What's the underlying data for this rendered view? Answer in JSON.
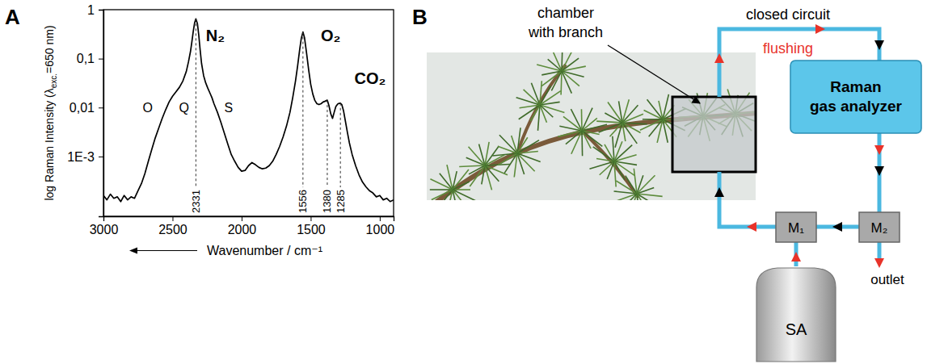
{
  "panels": [
    "A",
    "B"
  ],
  "chart_data": {
    "type": "line",
    "xlabel": "Wavenumber / cm⁻¹",
    "ylabel": [
      "log Raman Intensity (λ",
      "exc.",
      "=650 nm)"
    ],
    "log": "y",
    "grid": false,
    "color": "#000000",
    "xlim": [
      3000,
      900
    ],
    "xticks": [
      3000,
      2500,
      2000,
      1500,
      1000
    ],
    "ylim": [
      6e-05,
      1
    ],
    "yticks": [
      {
        "value": 0.001,
        "label": "1E-3"
      },
      {
        "value": 0.01,
        "label": "0,01"
      },
      {
        "value": 0.1,
        "label": "0,1"
      },
      1
    ],
    "x": [
      3000,
      2975,
      2950,
      2925,
      2900,
      2875,
      2850,
      2825,
      2800,
      2775,
      2750,
      2725,
      2700,
      2675,
      2650,
      2625,
      2600,
      2575,
      2550,
      2525,
      2500,
      2475,
      2450,
      2425,
      2400,
      2385,
      2370,
      2360,
      2350,
      2340,
      2331,
      2320,
      2310,
      2300,
      2290,
      2275,
      2260,
      2245,
      2230,
      2215,
      2200,
      2175,
      2150,
      2125,
      2100,
      2075,
      2050,
      2025,
      2000,
      1975,
      1950,
      1925,
      1900,
      1875,
      1850,
      1825,
      1800,
      1775,
      1750,
      1725,
      1700,
      1675,
      1650,
      1630,
      1610,
      1595,
      1580,
      1568,
      1556,
      1545,
      1530,
      1515,
      1500,
      1485,
      1470,
      1455,
      1440,
      1425,
      1410,
      1395,
      1380,
      1368,
      1355,
      1342,
      1330,
      1318,
      1305,
      1295,
      1285,
      1275,
      1262,
      1250,
      1235,
      1220,
      1200,
      1175,
      1150,
      1125,
      1100,
      1075,
      1050,
      1025,
      1000,
      975,
      950,
      925,
      900
    ],
    "values": [
      0.00016,
      0.00013,
      0.00017,
      0.00014,
      0.00015,
      0.00012,
      0.00016,
      0.00013,
      0.00015,
      0.00014,
      0.0002,
      0.00028,
      0.00045,
      0.0008,
      0.0014,
      0.0024,
      0.0038,
      0.006,
      0.009,
      0.013,
      0.017,
      0.021,
      0.026,
      0.035,
      0.055,
      0.085,
      0.14,
      0.22,
      0.36,
      0.54,
      0.65,
      0.52,
      0.3,
      0.15,
      0.08,
      0.045,
      0.032,
      0.025,
      0.02,
      0.016,
      0.012,
      0.008,
      0.005,
      0.003,
      0.0018,
      0.0011,
      0.0008,
      0.0006,
      0.0005,
      0.00052,
      0.00065,
      0.00075,
      0.00068,
      0.0006,
      0.00056,
      0.00058,
      0.00065,
      0.0008,
      0.0011,
      0.0016,
      0.0025,
      0.0042,
      0.008,
      0.016,
      0.035,
      0.07,
      0.15,
      0.26,
      0.35,
      0.27,
      0.13,
      0.06,
      0.03,
      0.019,
      0.014,
      0.012,
      0.0115,
      0.012,
      0.013,
      0.0135,
      0.0142,
      0.011,
      0.0075,
      0.006,
      0.008,
      0.0105,
      0.0118,
      0.0122,
      0.0123,
      0.0115,
      0.0085,
      0.0055,
      0.0032,
      0.0019,
      0.0011,
      0.00065,
      0.00042,
      0.0003,
      0.00024,
      0.0002,
      0.00018,
      0.00015,
      0.00016,
      0.00013,
      0.00014,
      0.00012,
      0.00013
    ],
    "peaks": [
      2331,
      1556,
      1380,
      1285
    ],
    "annotations": [
      {
        "text": "N₂",
        "x": 2190,
        "y": 0.3
      },
      {
        "text": "O₂",
        "x": 1355,
        "y": 0.3
      },
      {
        "text": "CO₂",
        "x": 1070,
        "y": 0.04
      }
    ],
    "branch_labels": [
      {
        "text": "O",
        "x": 2680,
        "y": 0.01
      },
      {
        "text": "Q",
        "x": 2416,
        "y": 0.01
      },
      {
        "text": "S",
        "x": 2095,
        "y": 0.01
      }
    ]
  },
  "diagram": {
    "photo_label": "chamber with branch",
    "circuit_label": "closed circuit",
    "flushing_label": "flushing",
    "analyzer": "Raman gas analyzer",
    "valves": [
      "M₁",
      "M₂"
    ],
    "supply": "SA",
    "outlet": "outlet"
  }
}
